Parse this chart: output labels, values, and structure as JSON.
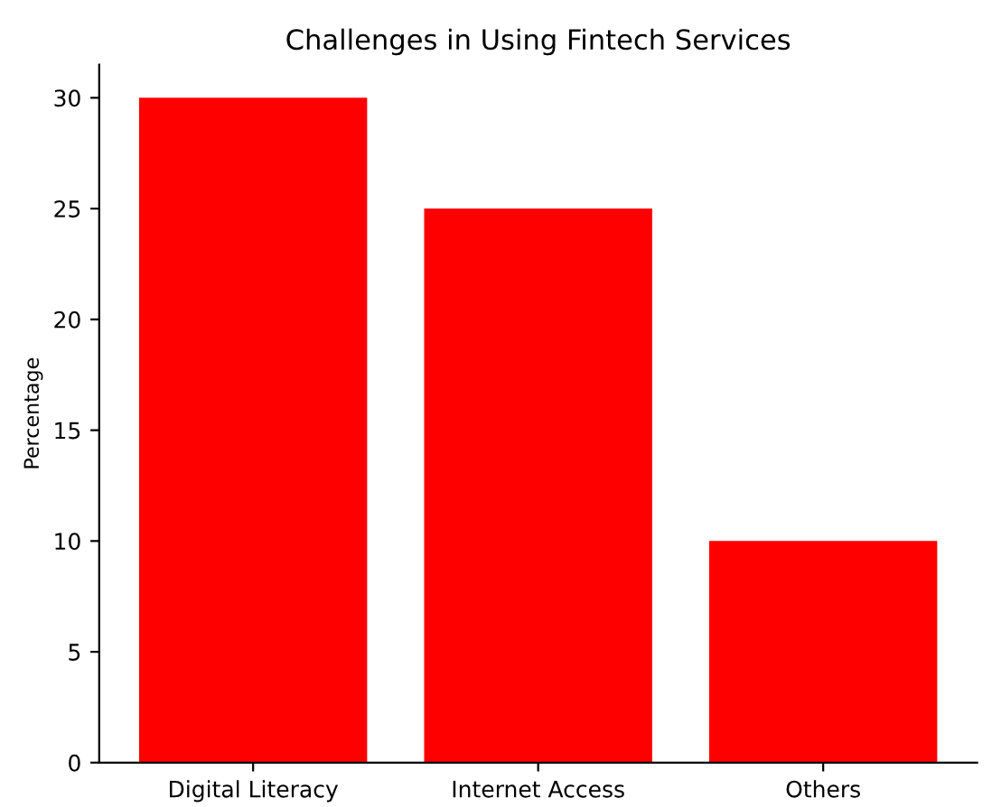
{
  "chart_data": {
    "type": "bar",
    "title": "Challenges in Using Fintech Services",
    "ylabel": "Percentage",
    "categories": [
      "Digital Literacy",
      "Internet Access",
      "Others"
    ],
    "values": [
      30,
      25,
      10
    ],
    "color": "#ff0000",
    "ylim": [
      0,
      31.5
    ],
    "yticks": [
      0,
      5,
      10,
      15,
      20,
      25,
      30
    ],
    "grid": false,
    "legend": false
  }
}
